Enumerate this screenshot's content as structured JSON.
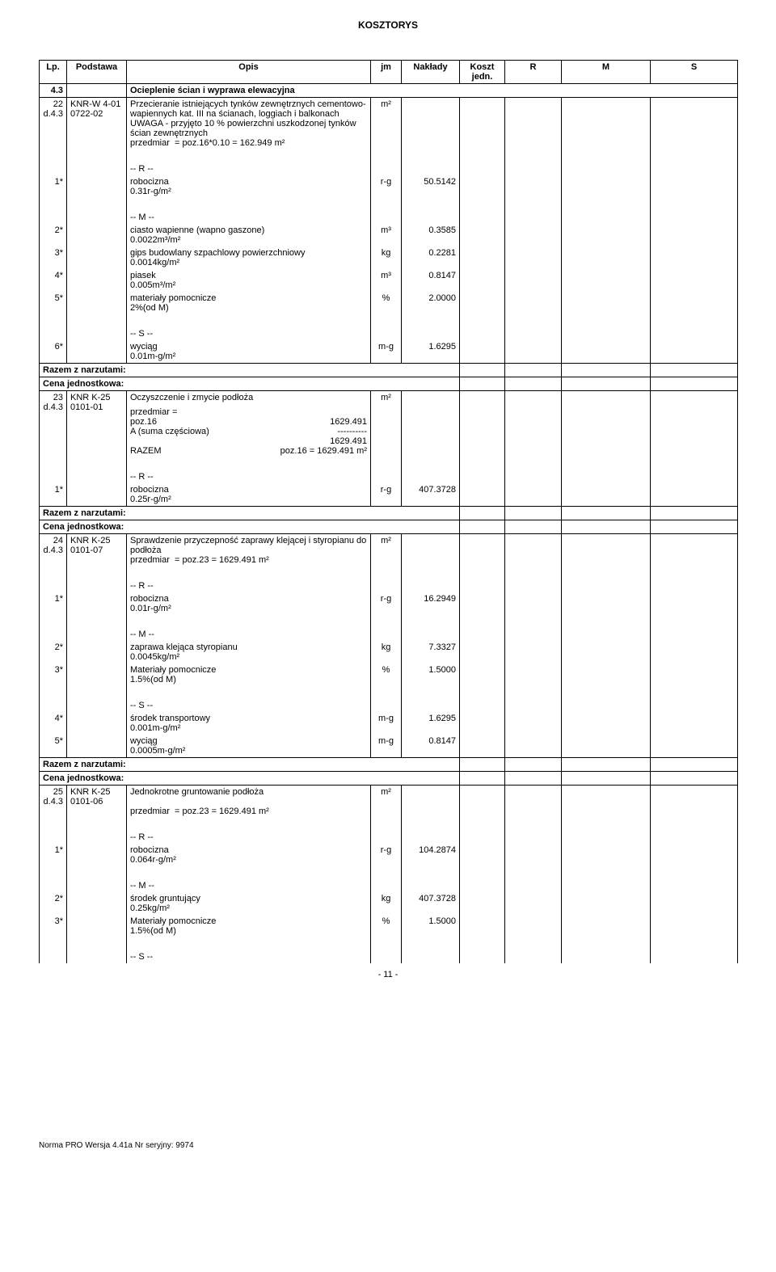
{
  "doc_title": "KOSZTORYS",
  "header": {
    "lp": "Lp.",
    "podstawa": "Podstawa",
    "opis": "Opis",
    "jm": "jm",
    "naklady": "Nakłady",
    "koszt": "Koszt jedn.",
    "r": "R",
    "m": "M",
    "s": "S"
  },
  "col_widths": {
    "lp": "34px",
    "podstawa": "74px",
    "opis": "302px",
    "jm": "38px",
    "naklady": "72px",
    "koszt": "56px",
    "r": "70px",
    "m": "110px",
    "s": "108px"
  },
  "rows": [
    {
      "type": "section",
      "lp": "4.3",
      "opis": "Ocieplenie ścian i wyprawa elewacyjna"
    },
    {
      "type": "item-head",
      "lp": "22",
      "sublp": "d.4.3",
      "podstawa": "KNR-W 4-01\n0722-02",
      "opis": "Przecieranie istniejących tynków zewnętrznych cementowo-wapiennych kat. III na ścianach, loggiach i balkonach\nUWAGA - przyjęto 10 % powierzchni uszkodzonej tynków ścian zewnętrznych\nprzedmiar  = poz.16*0.10 = 162.949 m²",
      "jm": "m²"
    },
    {
      "type": "blank"
    },
    {
      "type": "group-label",
      "label": "-- R --"
    },
    {
      "type": "line",
      "lp": "1*",
      "opis": "robocizna\n0.31r-g/m²",
      "jm": "r-g",
      "nak": "50.5142"
    },
    {
      "type": "blank"
    },
    {
      "type": "group-label",
      "label": "-- M --"
    },
    {
      "type": "line",
      "lp": "2*",
      "opis": "ciasto wapienne (wapno gaszone)\n0.0022m³/m²",
      "jm": "m³",
      "nak": "0.3585"
    },
    {
      "type": "line",
      "lp": "3*",
      "opis": "gips budowlany szpachlowy powierzchniowy\n0.0014kg/m²",
      "jm": "kg",
      "nak": "0.2281"
    },
    {
      "type": "line",
      "lp": "4*",
      "opis": "piasek\n0.005m³/m²",
      "jm": "m³",
      "nak": "0.8147"
    },
    {
      "type": "line",
      "lp": "5*",
      "opis": "materiały pomocnicze\n2%(od M)",
      "jm": "%",
      "nak": "2.0000"
    },
    {
      "type": "blank"
    },
    {
      "type": "group-label",
      "label": "-- S --"
    },
    {
      "type": "line",
      "lp": "6*",
      "opis": "wyciąg\n0.01m-g/m²",
      "jm": "m-g",
      "nak": "1.6295"
    },
    {
      "type": "razem"
    },
    {
      "type": "cena"
    },
    {
      "type": "item-head",
      "lp": "23",
      "sublp": "d.4.3",
      "podstawa": "KNR K-25\n0101-01",
      "opis": "Oczyszczenie i zmycie podłoża",
      "jm": "m²",
      "przedmiar": [
        [
          "przedmiar  =",
          ""
        ],
        [
          "poz.16",
          "1629.491"
        ],
        [
          "A  (suma częściowa)",
          "----------"
        ],
        [
          "",
          "1629.491"
        ],
        [
          "RAZEM",
          "poz.16 = 1629.491 m²"
        ]
      ]
    },
    {
      "type": "blank"
    },
    {
      "type": "group-label",
      "label": "-- R --"
    },
    {
      "type": "line",
      "lp": "1*",
      "opis": "robocizna\n0.25r-g/m²",
      "jm": "r-g",
      "nak": "407.3728"
    },
    {
      "type": "razem"
    },
    {
      "type": "cena"
    },
    {
      "type": "item-head",
      "lp": "24",
      "sublp": "d.4.3",
      "podstawa": "KNR K-25\n0101-07",
      "opis": "Sprawdzenie przyczepność zaprawy klejącej i styropianu do podłoża\nprzedmiar  = poz.23 = 1629.491 m²",
      "jm": "m²"
    },
    {
      "type": "blank"
    },
    {
      "type": "group-label",
      "label": "-- R --"
    },
    {
      "type": "line",
      "lp": "1*",
      "opis": "robocizna\n0.01r-g/m²",
      "jm": "r-g",
      "nak": "16.2949"
    },
    {
      "type": "blank"
    },
    {
      "type": "group-label",
      "label": "-- M --"
    },
    {
      "type": "line",
      "lp": "2*",
      "opis": "zaprawa klejąca styropianu\n0.0045kg/m²",
      "jm": "kg",
      "nak": "7.3327"
    },
    {
      "type": "line",
      "lp": "3*",
      "opis": "Materiały pomocnicze\n1.5%(od M)",
      "jm": "%",
      "nak": "1.5000"
    },
    {
      "type": "blank"
    },
    {
      "type": "group-label",
      "label": "-- S --"
    },
    {
      "type": "line",
      "lp": "4*",
      "opis": "środek transportowy\n0.001m-g/m²",
      "jm": "m-g",
      "nak": "1.6295"
    },
    {
      "type": "line",
      "lp": "5*",
      "opis": "wyciąg\n0.0005m-g/m²",
      "jm": "m-g",
      "nak": "0.8147"
    },
    {
      "type": "razem"
    },
    {
      "type": "cena"
    },
    {
      "type": "item-head",
      "lp": "25",
      "sublp": "d.4.3",
      "podstawa": "KNR K-25\n0101-06",
      "opis": "Jednokrotne gruntowanie podłoża",
      "jm": "m²",
      "opis_extra": "\nprzedmiar  = poz.23 = 1629.491 m²"
    },
    {
      "type": "blank"
    },
    {
      "type": "group-label",
      "label": "-- R --"
    },
    {
      "type": "line",
      "lp": "1*",
      "opis": "robocizna\n0.064r-g/m²",
      "jm": "r-g",
      "nak": "104.2874"
    },
    {
      "type": "blank"
    },
    {
      "type": "group-label",
      "label": "-- M --"
    },
    {
      "type": "line",
      "lp": "2*",
      "opis": "środek gruntujący\n0.25kg/m²",
      "jm": "kg",
      "nak": "407.3728"
    },
    {
      "type": "line",
      "lp": "3*",
      "opis": "Materiały pomocnicze\n1.5%(od M)",
      "jm": "%",
      "nak": "1.5000"
    },
    {
      "type": "blank"
    },
    {
      "type": "group-label",
      "label": "-- S --"
    }
  ],
  "razem_label": "Razem z narzutami:",
  "cena_label": "Cena jednostkowa:",
  "page_num": "- 11 -",
  "footer": "Norma PRO Wersja 4.41a Nr seryjny: 9974"
}
